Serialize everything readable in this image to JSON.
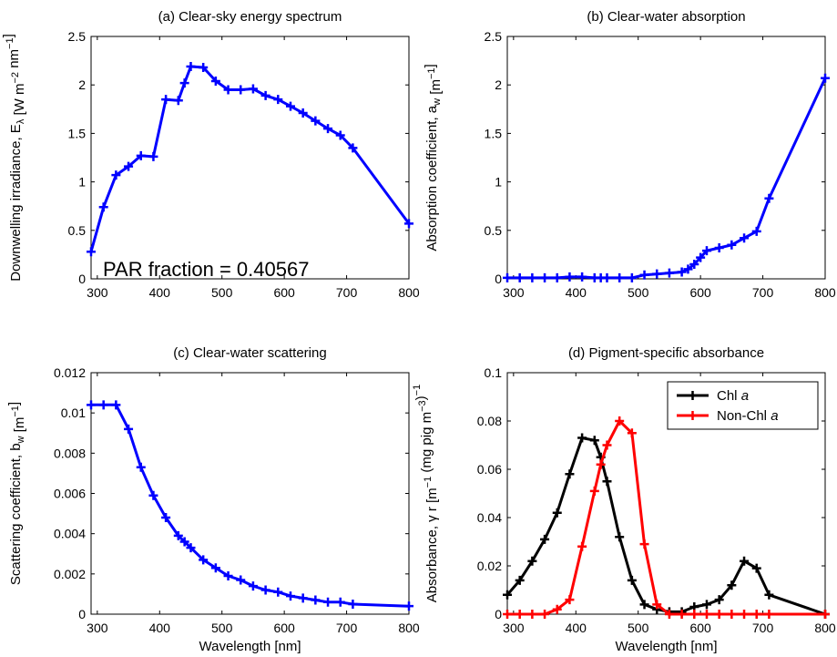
{
  "chart_data": [
    {
      "type": "line",
      "title": "(a) Clear-sky energy spectrum",
      "ylabel": "Downwelling irradiance, Eλ [W m−2 nm−1]",
      "ylabel_parts": {
        "main": "Downwelling irradiance, E",
        "sub": "λ",
        "unit_open": " [W m",
        "sup1": "−2",
        "mid": " nm",
        "sup2": "−1",
        "close": "]"
      },
      "xlabel": "",
      "xlim": [
        290,
        800
      ],
      "ylim": [
        0,
        2.5
      ],
      "xticks": [
        "300",
        "400",
        "500",
        "600",
        "700",
        "800"
      ],
      "yticks": [
        "0",
        "0.5",
        "1",
        "1.5",
        "2",
        "2.5"
      ],
      "annotation": "PAR fraction = 0.40567",
      "grid": false,
      "series": [
        {
          "color": "#0000ff",
          "x": [
            290,
            310,
            330,
            350,
            370,
            390,
            410,
            430,
            440,
            450,
            470,
            490,
            510,
            530,
            550,
            570,
            590,
            610,
            630,
            650,
            670,
            690,
            710,
            800
          ],
          "y": [
            0.28,
            0.74,
            1.07,
            1.16,
            1.27,
            1.26,
            1.85,
            1.84,
            2.02,
            2.19,
            2.18,
            2.04,
            1.95,
            1.95,
            1.96,
            1.89,
            1.85,
            1.78,
            1.71,
            1.63,
            1.55,
            1.48,
            1.35,
            0.57
          ]
        }
      ]
    },
    {
      "type": "line",
      "title": "(b) Clear-water absorption",
      "ylabel": "Absorption coefficient, aw [m−1]",
      "ylabel_parts": {
        "main": "Absorption coefficient, a",
        "sub": "w",
        "unit_open": " [m",
        "sup1": "−1",
        "close": "]"
      },
      "xlabel": "",
      "xlim": [
        290,
        800
      ],
      "ylim": [
        0,
        2.5
      ],
      "xticks": [
        "300",
        "400",
        "500",
        "600",
        "700",
        "800"
      ],
      "yticks": [
        "0",
        "0.5",
        "1",
        "1.5",
        "2",
        "2.5"
      ],
      "grid": false,
      "series": [
        {
          "color": "#0000ff",
          "x": [
            290,
            310,
            330,
            350,
            370,
            390,
            410,
            430,
            440,
            450,
            470,
            490,
            510,
            530,
            550,
            570,
            580,
            590,
            600,
            610,
            630,
            650,
            670,
            690,
            710,
            800
          ],
          "y": [
            0.01,
            0.01,
            0.01,
            0.01,
            0.01,
            0.02,
            0.02,
            0.01,
            0.01,
            0.01,
            0.01,
            0.01,
            0.04,
            0.05,
            0.06,
            0.07,
            0.1,
            0.15,
            0.22,
            0.29,
            0.32,
            0.35,
            0.42,
            0.49,
            0.83,
            2.07
          ]
        }
      ]
    },
    {
      "type": "line",
      "title": "(c) Clear-water scattering",
      "ylabel": "Scattering coefficient, bw [m−1]",
      "ylabel_parts": {
        "main": "Scattering coefficient, b",
        "sub": "w",
        "unit_open": " [m",
        "sup1": "−1",
        "close": "]"
      },
      "xlabel": "Wavelength [nm]",
      "xlim": [
        290,
        800
      ],
      "ylim": [
        0,
        0.012
      ],
      "xticks": [
        "300",
        "400",
        "500",
        "600",
        "700",
        "800"
      ],
      "yticks": [
        "0",
        "0.002",
        "0.004",
        "0.006",
        "0.008",
        "0.01",
        "0.012"
      ],
      "grid": false,
      "series": [
        {
          "color": "#0000ff",
          "x": [
            290,
            310,
            330,
            350,
            370,
            390,
            410,
            430,
            440,
            450,
            470,
            490,
            510,
            530,
            550,
            570,
            590,
            610,
            630,
            650,
            670,
            690,
            710,
            800
          ],
          "y": [
            0.0104,
            0.0104,
            0.0104,
            0.0092,
            0.0073,
            0.0059,
            0.0048,
            0.0039,
            0.0036,
            0.0033,
            0.0027,
            0.0023,
            0.0019,
            0.0017,
            0.0014,
            0.0012,
            0.0011,
            0.0009,
            0.0008,
            0.0007,
            0.0006,
            0.0006,
            0.0005,
            0.0004
          ]
        }
      ]
    },
    {
      "type": "line",
      "title": "(d) Pigment-specific absorbance",
      "ylabel": "Absorbance, γr [m−1 (mg pig m−3)−1]",
      "ylabel_parts": {
        "main": "Absorbance, γ r [m",
        "sup1": "−1",
        "mid": " (mg pig m",
        "sup2": "−3",
        "mid2": ")",
        "sup3": "−1",
        "close": ""
      },
      "xlabel": "Wavelength [nm]",
      "xlim": [
        290,
        800
      ],
      "ylim": [
        0,
        0.1
      ],
      "xticks": [
        "300",
        "400",
        "500",
        "600",
        "700",
        "800"
      ],
      "yticks": [
        "0",
        "0.02",
        "0.04",
        "0.06",
        "0.08",
        "0.1"
      ],
      "legend_position": "top-right",
      "grid": false,
      "series": [
        {
          "name": "Chl a",
          "legend_main": "Chl ",
          "legend_italic": "a",
          "color": "#000000",
          "x": [
            290,
            310,
            330,
            350,
            370,
            390,
            410,
            430,
            440,
            450,
            470,
            490,
            510,
            530,
            550,
            570,
            590,
            610,
            630,
            650,
            670,
            690,
            710,
            800
          ],
          "y": [
            0.008,
            0.014,
            0.022,
            0.031,
            0.042,
            0.058,
            0.073,
            0.072,
            0.065,
            0.055,
            0.032,
            0.014,
            0.004,
            0.002,
            0.001,
            0.001,
            0.003,
            0.004,
            0.006,
            0.012,
            0.022,
            0.019,
            0.008,
            0.0
          ]
        },
        {
          "name": "Non-Chl a",
          "legend_main": "Non-Chl ",
          "legend_italic": "a",
          "color": "#ff0000",
          "x": [
            290,
            310,
            330,
            350,
            370,
            390,
            410,
            430,
            440,
            450,
            470,
            490,
            510,
            530,
            550,
            570,
            590,
            610,
            630,
            650,
            670,
            690,
            710,
            800
          ],
          "y": [
            0.0,
            0.0,
            0.0,
            0.0,
            0.002,
            0.006,
            0.028,
            0.051,
            0.062,
            0.07,
            0.08,
            0.075,
            0.029,
            0.004,
            0.0,
            0.0,
            0.0,
            0.0,
            0.0,
            0.0,
            0.0,
            0.0,
            0.0,
            0.0
          ]
        }
      ]
    }
  ]
}
